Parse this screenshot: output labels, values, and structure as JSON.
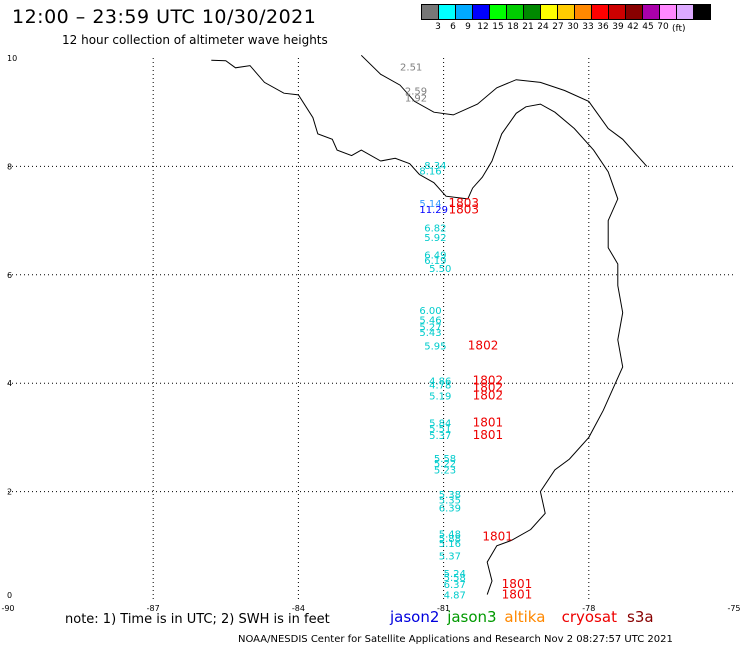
{
  "header": {
    "title": "12:00 – 23:59 UTC 10/30/2021",
    "subtitle": "12 hour collection of altimeter wave heights"
  },
  "legend": {
    "colors": [
      "#777777",
      "#00ffff",
      "#00aaff",
      "#0000ff",
      "#00ff00",
      "#00cc00",
      "#008800",
      "#ffff00",
      "#ffcc00",
      "#ff8800",
      "#ff0000",
      "#cc0000",
      "#880000",
      "#aa00aa",
      "#ff88ff",
      "#ddaaff",
      "#000000"
    ],
    "ticks": [
      "3",
      "6",
      "9",
      "12",
      "15",
      "18",
      "21",
      "24",
      "27",
      "30",
      "33",
      "36",
      "39",
      "42",
      "45",
      "70"
    ],
    "unit": "(ft)"
  },
  "axes": {
    "x_ticks": [
      "-90",
      "-87",
      "-84",
      "-81",
      "-78",
      "-75"
    ],
    "y_ticks": [
      "0",
      "2",
      "4",
      "6",
      "8",
      "10"
    ]
  },
  "observations": [
    {
      "text": "2.51",
      "lon": -81.9,
      "lat": 9.77,
      "color": "#808080"
    },
    {
      "text": "2.59",
      "lon": -81.8,
      "lat": 9.33,
      "color": "#808080"
    },
    {
      "text": "1.92",
      "lon": -81.8,
      "lat": 9.2,
      "color": "#808080"
    },
    {
      "text": "8.34",
      "lon": -81.4,
      "lat": 7.95,
      "color": "#00cccc"
    },
    {
      "text": "8.16",
      "lon": -81.5,
      "lat": 7.85,
      "color": "#00cccc"
    },
    {
      "text": "5.14",
      "lon": -81.5,
      "lat": 7.25,
      "color": "#3399ff"
    },
    {
      "text": "11.29",
      "lon": -81.5,
      "lat": 7.14,
      "color": "#0000ff"
    },
    {
      "text": "1803",
      "lon": -80.9,
      "lat": 7.25,
      "color": "#ee0000"
    },
    {
      "text": "1803",
      "lon": -80.9,
      "lat": 7.13,
      "color": "#ee0000"
    },
    {
      "text": "6.82",
      "lon": -81.4,
      "lat": 6.8,
      "color": "#00cccc"
    },
    {
      "text": "5.92",
      "lon": -81.4,
      "lat": 6.62,
      "color": "#00cccc"
    },
    {
      "text": "6.49",
      "lon": -81.4,
      "lat": 6.3,
      "color": "#00cccc"
    },
    {
      "text": "6.19",
      "lon": -81.4,
      "lat": 6.2,
      "color": "#00cccc"
    },
    {
      "text": "5.50",
      "lon": -81.3,
      "lat": 6.05,
      "color": "#00cccc"
    },
    {
      "text": "6.00",
      "lon": -81.5,
      "lat": 5.28,
      "color": "#00cccc"
    },
    {
      "text": "5.46",
      "lon": -81.5,
      "lat": 5.1,
      "color": "#00cccc"
    },
    {
      "text": "5.27",
      "lon": -81.5,
      "lat": 4.97,
      "color": "#00cccc"
    },
    {
      "text": "5.43",
      "lon": -81.5,
      "lat": 4.87,
      "color": "#00cccc"
    },
    {
      "text": "5.95",
      "lon": -81.4,
      "lat": 4.62,
      "color": "#00cccc"
    },
    {
      "text": "1802",
      "lon": -80.5,
      "lat": 4.62,
      "color": "#ee0000"
    },
    {
      "text": "4.86",
      "lon": -81.3,
      "lat": 3.98,
      "color": "#00cccc"
    },
    {
      "text": "4.78",
      "lon": -81.3,
      "lat": 3.9,
      "color": "#00cccc"
    },
    {
      "text": "5.19",
      "lon": -81.3,
      "lat": 3.7,
      "color": "#00cccc"
    },
    {
      "text": "1802",
      "lon": -80.4,
      "lat": 3.98,
      "color": "#ee0000"
    },
    {
      "text": "1802",
      "lon": -80.4,
      "lat": 3.85,
      "color": "#ee0000"
    },
    {
      "text": "1802",
      "lon": -80.4,
      "lat": 3.7,
      "color": "#ee0000"
    },
    {
      "text": "5.84",
      "lon": -81.3,
      "lat": 3.2,
      "color": "#00cccc"
    },
    {
      "text": "5.51",
      "lon": -81.3,
      "lat": 3.1,
      "color": "#00cccc"
    },
    {
      "text": "5.37",
      "lon": -81.3,
      "lat": 2.97,
      "color": "#00cccc"
    },
    {
      "text": "1801",
      "lon": -80.4,
      "lat": 3.2,
      "color": "#ee0000"
    },
    {
      "text": "1801",
      "lon": -80.4,
      "lat": 2.97,
      "color": "#ee0000"
    },
    {
      "text": "5.58",
      "lon": -81.2,
      "lat": 2.55,
      "color": "#00cccc"
    },
    {
      "text": "5.22",
      "lon": -81.2,
      "lat": 2.45,
      "color": "#00cccc"
    },
    {
      "text": "5.23",
      "lon": -81.2,
      "lat": 2.33,
      "color": "#00cccc"
    },
    {
      "text": "5.38",
      "lon": -81.1,
      "lat": 1.88,
      "color": "#00cccc"
    },
    {
      "text": "5.35",
      "lon": -81.1,
      "lat": 1.78,
      "color": "#00cccc"
    },
    {
      "text": "6.39",
      "lon": -81.1,
      "lat": 1.63,
      "color": "#00cccc"
    },
    {
      "text": "5.48",
      "lon": -81.1,
      "lat": 1.15,
      "color": "#00cccc"
    },
    {
      "text": "5.88",
      "lon": -81.1,
      "lat": 1.07,
      "color": "#00cccc"
    },
    {
      "text": "5.16",
      "lon": -81.1,
      "lat": 0.98,
      "color": "#00cccc"
    },
    {
      "text": "1801",
      "lon": -80.2,
      "lat": 1.1,
      "color": "#ee0000"
    },
    {
      "text": "5.37",
      "lon": -81.1,
      "lat": 0.75,
      "color": "#00cccc"
    },
    {
      "text": "5.24",
      "lon": -81.0,
      "lat": 0.42,
      "color": "#00cccc"
    },
    {
      "text": "5.58",
      "lon": -81.0,
      "lat": 0.35,
      "color": "#00cccc"
    },
    {
      "text": "6.37",
      "lon": -81.0,
      "lat": 0.22,
      "color": "#00cccc"
    },
    {
      "text": "4.87",
      "lon": -81.0,
      "lat": 0.03,
      "color": "#00cccc"
    },
    {
      "text": "1801",
      "lon": -79.8,
      "lat": 0.22,
      "color": "#ee0000"
    },
    {
      "text": "1801",
      "lon": -79.8,
      "lat": 0.03,
      "color": "#ee0000"
    }
  ],
  "coastline": [
    [
      [
        -85.8,
        9.96
      ],
      [
        -85.5,
        9.95
      ],
      [
        -85.3,
        9.82
      ],
      [
        -85.0,
        9.86
      ],
      [
        -84.7,
        9.55
      ],
      [
        -84.3,
        9.35
      ],
      [
        -84.0,
        9.32
      ],
      [
        -83.7,
        8.9
      ],
      [
        -83.6,
        8.6
      ],
      [
        -83.3,
        8.5
      ],
      [
        -83.2,
        8.3
      ],
      [
        -82.9,
        8.2
      ],
      [
        -82.7,
        8.3
      ],
      [
        -82.3,
        8.1
      ],
      [
        -82.0,
        8.15
      ],
      [
        -81.7,
        8.05
      ],
      [
        -81.5,
        7.85
      ],
      [
        -81.2,
        7.7
      ],
      [
        -80.95,
        7.45
      ],
      [
        -80.5,
        7.4
      ],
      [
        -80.4,
        7.6
      ],
      [
        -80.2,
        7.8
      ],
      [
        -80.0,
        8.1
      ],
      [
        -79.8,
        8.6
      ],
      [
        -79.5,
        8.98
      ],
      [
        -79.3,
        9.1
      ],
      [
        -79.0,
        9.15
      ],
      [
        -78.7,
        9.0
      ],
      [
        -78.3,
        8.7
      ],
      [
        -77.9,
        8.3
      ],
      [
        -77.6,
        7.9
      ],
      [
        -77.4,
        7.4
      ],
      [
        -77.6,
        7.0
      ],
      [
        -77.6,
        6.5
      ],
      [
        -77.4,
        6.2
      ],
      [
        -77.4,
        5.8
      ],
      [
        -77.3,
        5.3
      ],
      [
        -77.4,
        4.8
      ],
      [
        -77.3,
        4.3
      ],
      [
        -77.5,
        3.9
      ],
      [
        -77.7,
        3.5
      ],
      [
        -78.0,
        3.0
      ],
      [
        -78.4,
        2.6
      ],
      [
        -78.7,
        2.4
      ],
      [
        -79.0,
        2.0
      ],
      [
        -78.9,
        1.6
      ],
      [
        -79.2,
        1.3
      ],
      [
        -79.6,
        1.1
      ],
      [
        -79.9,
        1.0
      ],
      [
        -80.1,
        0.7
      ],
      [
        -80.0,
        0.35
      ],
      [
        -80.1,
        0.1
      ]
    ],
    [
      [
        -82.7,
        10.05
      ],
      [
        -82.3,
        9.7
      ],
      [
        -81.9,
        9.5
      ],
      [
        -81.6,
        9.2
      ],
      [
        -81.2,
        9.0
      ],
      [
        -80.8,
        8.95
      ],
      [
        -80.3,
        9.15
      ],
      [
        -79.9,
        9.45
      ],
      [
        -79.5,
        9.6
      ],
      [
        -79.0,
        9.55
      ],
      [
        -78.5,
        9.4
      ],
      [
        -78.0,
        9.2
      ],
      [
        -77.6,
        8.7
      ],
      [
        -77.3,
        8.5
      ],
      [
        -77.0,
        8.2
      ],
      [
        -76.8,
        8.0
      ]
    ]
  ],
  "note": "note: 1) Time is in UTC; 2) SWH is in feet",
  "satellites": [
    {
      "name": "jason2",
      "color": "#0000dd"
    },
    {
      "name": "jason3",
      "color": "#009900"
    },
    {
      "name": "altika",
      "color": "#ff8800"
    },
    {
      "name": "cryosat",
      "color": "#ee0000"
    },
    {
      "name": "s3a",
      "color": "#880000"
    }
  ],
  "footer": "NOAA/NESDIS Center for Satellite Applications and Research    Nov  2 08:27:57 UTC 2021"
}
